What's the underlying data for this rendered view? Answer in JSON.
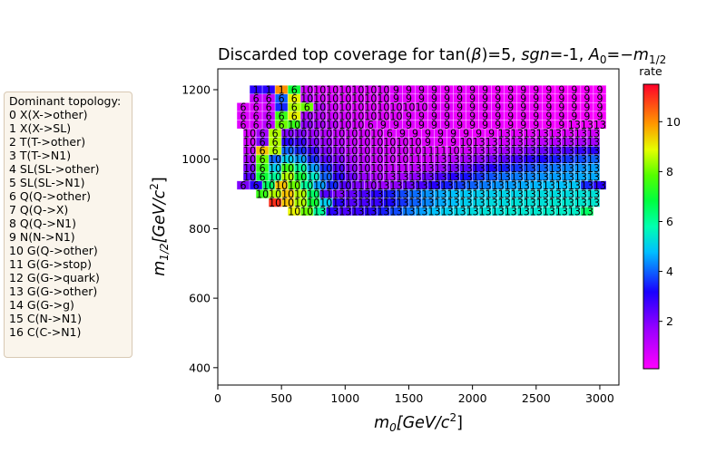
{
  "chart_data": {
    "type": "heatmap",
    "title": "Discarded top coverage for tan(β)=5, sgn=-1, A0=−m1/2",
    "title_parts": {
      "pre": "Discarded top coverage for tan(",
      "beta": "β",
      "mid1": ")=5, ",
      "sgn": "sgn",
      "mid2": "=-1, ",
      "A": "A",
      "A_sub": "0",
      "mid3": "=−",
      "m": "m",
      "m_sub": "1/2"
    },
    "xlabel": {
      "m": "m",
      "sub": "0",
      "unit": "[GeV/c",
      "sup": "2",
      "close": "]"
    },
    "ylabel": {
      "m": "m",
      "sub": "1/2",
      "unit": "[GeV/c",
      "sup": "2",
      "close": "]"
    },
    "xlim": [
      0,
      3150
    ],
    "ylim": [
      350,
      1260
    ],
    "x_ticks": [
      "0",
      "500",
      "1000",
      "1500",
      "2000",
      "2500",
      "3000"
    ],
    "y_ticks": [
      "400",
      "600",
      "800",
      "1000",
      "1200"
    ],
    "colorbar": {
      "label": "rate",
      "range": [
        0.1,
        11.5
      ],
      "ticks": [
        "2",
        "4",
        "6",
        "8",
        "10"
      ],
      "colormap": "gist_rainbow_r"
    },
    "grid": false,
    "cell_size": [
      100,
      25
    ],
    "x_values": [
      200,
      300,
      400,
      500,
      600,
      700,
      800,
      900,
      1000,
      1100,
      1200,
      1300,
      1400,
      1500,
      1600,
      1700,
      1800,
      1900,
      2000,
      2100,
      2200,
      2300,
      2400,
      2500,
      2600,
      2700,
      2800,
      2900,
      3000
    ],
    "rows": [
      {
        "y": 1200,
        "x_start": 300,
        "topology": [
          "1",
          "1",
          "1",
          "6",
          "10",
          "10",
          "10",
          "10",
          "10",
          "10",
          "10",
          "9",
          "9",
          "9",
          "9",
          "9",
          "9",
          "9",
          "9",
          "9",
          "9",
          "9",
          "9",
          "9",
          "9",
          "9",
          "9",
          "9"
        ],
        "rate": [
          3.0,
          3.0,
          10.0,
          7.0,
          0.9,
          0.7,
          0.6,
          0.6,
          0.6,
          0.6,
          0.6,
          0.6,
          0.5,
          0.5,
          0.5,
          0.4,
          0.4,
          0.4,
          0.4,
          0.3,
          0.3,
          0.3,
          0.3,
          0.2,
          0.2,
          0.2,
          0.2,
          0.2
        ]
      },
      {
        "y": 1175,
        "x_start": 300,
        "topology": [
          "6",
          "6",
          "6",
          "6",
          "10",
          "10",
          "10",
          "10",
          "10",
          "10",
          "10",
          "9",
          "9",
          "9",
          "9",
          "9",
          "9",
          "9",
          "9",
          "9",
          "9",
          "9",
          "9",
          "9",
          "9",
          "9",
          "9",
          "9"
        ],
        "rate": [
          1.0,
          1.0,
          4.0,
          9.0,
          1.2,
          0.8,
          0.7,
          0.6,
          0.6,
          0.6,
          0.6,
          0.6,
          0.5,
          0.5,
          0.5,
          0.4,
          0.4,
          0.4,
          0.4,
          0.3,
          0.3,
          0.3,
          0.3,
          0.2,
          0.2,
          0.2,
          0.2,
          0.2
        ]
      },
      {
        "y": 1150,
        "x_start": 200,
        "topology": [
          "6",
          "6",
          "6",
          "1",
          "6",
          "6",
          "10",
          "10",
          "10",
          "10",
          "10",
          "10",
          "10",
          "10",
          "10",
          "9",
          "9",
          "9",
          "9",
          "9",
          "9",
          "9",
          "9",
          "9",
          "9",
          "9",
          "9",
          "9",
          "9"
        ],
        "rate": [
          0.6,
          0.6,
          0.8,
          3.5,
          8.5,
          8.0,
          1.3,
          0.8,
          0.7,
          0.6,
          0.6,
          0.6,
          0.6,
          0.6,
          0.6,
          0.5,
          0.5,
          0.4,
          0.4,
          0.4,
          0.4,
          0.3,
          0.3,
          0.3,
          0.3,
          0.2,
          0.2,
          0.2,
          0.2
        ]
      },
      {
        "y": 1125,
        "x_start": 200,
        "topology": [
          "6",
          "6",
          "6",
          "6",
          "6",
          "10",
          "10",
          "10",
          "10",
          "10",
          "10",
          "10",
          "10",
          "9",
          "9",
          "9",
          "9",
          "9",
          "9",
          "9",
          "9",
          "9",
          "9",
          "9",
          "9",
          "9",
          "9",
          "9",
          "9"
        ],
        "rate": [
          0.6,
          0.6,
          1.0,
          7.5,
          9.0,
          1.5,
          1.2,
          0.9,
          0.8,
          0.7,
          0.7,
          0.6,
          0.6,
          0.6,
          0.5,
          0.5,
          0.5,
          0.4,
          0.4,
          0.4,
          0.4,
          0.3,
          0.3,
          0.3,
          0.3,
          0.3,
          0.2,
          0.2,
          0.2
        ]
      },
      {
        "y": 1100,
        "x_start": 200,
        "topology": [
          "6",
          "6",
          "6",
          "6",
          "10",
          "10",
          "10",
          "10",
          "10",
          "10",
          "6",
          "9",
          "9",
          "9",
          "9",
          "9",
          "9",
          "9",
          "9",
          "9",
          "9",
          "9",
          "9",
          "9",
          "9",
          "9",
          "13",
          "13",
          "13"
        ],
        "rate": [
          0.6,
          0.7,
          1.2,
          8.0,
          7.5,
          1.8,
          1.5,
          1.2,
          0.9,
          0.8,
          0.7,
          0.6,
          0.6,
          0.6,
          0.5,
          0.5,
          0.5,
          0.4,
          0.4,
          0.4,
          0.4,
          0.3,
          0.3,
          0.3,
          0.3,
          0.3,
          0.3,
          0.3,
          0.3
        ]
      },
      {
        "y": 1075,
        "x_start": 250,
        "topology": [
          "10",
          "6",
          "6",
          "10",
          "10",
          "10",
          "10",
          "10",
          "10",
          "10",
          "10",
          "6",
          "9",
          "9",
          "9",
          "9",
          "9",
          "9",
          "9",
          "9",
          "13",
          "13",
          "13",
          "13",
          "13",
          "13",
          "13",
          "13"
        ],
        "rate": [
          0.7,
          1.5,
          8.5,
          2.0,
          2.0,
          1.6,
          1.3,
          1.0,
          0.9,
          0.8,
          0.7,
          0.6,
          0.6,
          0.5,
          0.5,
          0.5,
          0.5,
          0.4,
          0.4,
          0.4,
          0.5,
          0.5,
          0.5,
          0.6,
          0.6,
          0.6,
          0.7,
          0.8
        ]
      },
      {
        "y": 1050,
        "x_start": 250,
        "topology": [
          "10",
          "6",
          "6",
          "10",
          "10",
          "10",
          "10",
          "10",
          "10",
          "10",
          "10",
          "10",
          "10",
          "10",
          "9",
          "9",
          "9",
          "10",
          "13",
          "13",
          "13",
          "13",
          "13",
          "13",
          "13",
          "13",
          "13",
          "13"
        ],
        "rate": [
          0.8,
          2.0,
          8.5,
          3.0,
          2.8,
          2.0,
          1.7,
          1.3,
          1.0,
          0.9,
          0.8,
          0.7,
          0.7,
          0.6,
          0.6,
          0.5,
          0.5,
          0.6,
          0.6,
          0.7,
          0.8,
          0.9,
          1.0,
          1.1,
          1.2,
          1.3,
          1.4,
          1.5
        ]
      },
      {
        "y": 1025,
        "x_start": 250,
        "topology": [
          "10",
          "6",
          "6",
          "10",
          "10",
          "10",
          "10",
          "10",
          "10",
          "10",
          "10",
          "10",
          "10",
          "10",
          "11",
          "11",
          "10",
          "13",
          "13",
          "13",
          "13",
          "13",
          "13",
          "13",
          "13",
          "13",
          "13",
          "13"
        ],
        "rate": [
          1.0,
          9.5,
          8.5,
          4.0,
          3.5,
          2.8,
          2.0,
          1.6,
          1.2,
          1.0,
          0.9,
          0.8,
          0.8,
          0.7,
          0.7,
          0.6,
          0.7,
          0.8,
          1.0,
          1.2,
          1.5,
          1.7,
          2.0,
          2.2,
          2.4,
          2.6,
          2.8,
          3.0
        ]
      },
      {
        "y": 1000,
        "x_start": 250,
        "topology": [
          "10",
          "6",
          "10",
          "10",
          "10",
          "10",
          "10",
          "10",
          "10",
          "10",
          "10",
          "10",
          "10",
          "11",
          "11",
          "13",
          "13",
          "13",
          "13",
          "13",
          "13",
          "13",
          "13",
          "13",
          "13",
          "13",
          "13",
          "13"
        ],
        "rate": [
          1.5,
          8.0,
          4.0,
          5.0,
          4.5,
          3.5,
          2.5,
          2.0,
          1.5,
          1.2,
          1.0,
          0.9,
          0.8,
          0.8,
          0.8,
          1.0,
          1.2,
          1.5,
          1.8,
          2.1,
          2.4,
          2.7,
          3.0,
          3.2,
          3.4,
          3.6,
          3.8,
          4.0
        ]
      },
      {
        "y": 975,
        "x_start": 250,
        "topology": [
          "10",
          "6",
          "10",
          "10",
          "10",
          "10",
          "10",
          "10",
          "10",
          "10",
          "10",
          "11",
          "11",
          "13",
          "13",
          "13",
          "13",
          "13",
          "13",
          "13",
          "13",
          "13",
          "13",
          "13",
          "13",
          "13",
          "13",
          "13"
        ],
        "rate": [
          2.0,
          7.5,
          5.0,
          7.5,
          6.0,
          4.5,
          3.5,
          2.5,
          1.8,
          1.4,
          1.1,
          1.0,
          1.0,
          1.1,
          1.3,
          1.6,
          2.0,
          2.4,
          2.8,
          3.1,
          3.4,
          3.6,
          3.8,
          4.0,
          4.2,
          4.3,
          4.4,
          4.5
        ]
      },
      {
        "y": 950,
        "x_start": 250,
        "topology": [
          "10",
          "6",
          "10",
          "10",
          "10",
          "10",
          "10",
          "10",
          "10",
          "11",
          "10",
          "13",
          "13",
          "13",
          "13",
          "13",
          "13",
          "13",
          "13",
          "13",
          "13",
          "13",
          "13",
          "13",
          "13",
          "13",
          "13",
          "13"
        ],
        "rate": [
          2.5,
          7.0,
          6.0,
          8.5,
          7.0,
          5.5,
          4.0,
          3.0,
          2.2,
          1.7,
          1.4,
          1.3,
          1.5,
          1.8,
          2.2,
          2.6,
          3.0,
          3.3,
          3.6,
          3.9,
          4.1,
          4.2,
          4.3,
          4.4,
          4.5,
          4.5,
          4.6,
          4.6
        ]
      },
      {
        "y": 925,
        "x_start": 200,
        "topology": [
          "6",
          "6",
          "10",
          "10",
          "10",
          "10",
          "10",
          "10",
          "10",
          "11",
          "10",
          "13",
          "13",
          "13",
          "13",
          "13",
          "13",
          "13",
          "13",
          "13",
          "13",
          "13",
          "13",
          "13",
          "13",
          "13",
          "13",
          "13",
          "13"
        ],
        "rate": [
          2.0,
          3.0,
          6.5,
          9.5,
          8.0,
          6.0,
          4.5,
          3.5,
          2.5,
          2.0,
          1.7,
          1.6,
          1.8,
          2.2,
          2.6,
          3.0,
          3.4,
          3.7,
          4.0,
          4.2,
          4.4,
          4.5,
          4.6,
          4.7,
          4.8,
          4.8,
          4.9,
          3.5,
          3.0
        ]
      },
      {
        "y": 900,
        "x_start": 350,
        "topology": [
          "10",
          "10",
          "10",
          "10",
          "10",
          "11",
          "13",
          "13",
          "13",
          "13",
          "13",
          "13",
          "13",
          "13",
          "13",
          "13",
          "13",
          "13",
          "13",
          "13",
          "13",
          "13",
          "13",
          "13",
          "13",
          "13",
          "13"
        ],
        "rate": [
          7.5,
          8.5,
          9.5,
          8.5,
          6.5,
          2.5,
          2.0,
          2.3,
          2.6,
          3.0,
          3.4,
          3.8,
          4.1,
          4.4,
          4.6,
          4.8,
          4.9,
          5.0,
          5.0,
          5.1,
          5.1,
          5.2,
          5.2,
          5.2,
          5.2,
          5.3,
          5.3
        ]
      },
      {
        "y": 875,
        "x_start": 450,
        "topology": [
          "10",
          "10",
          "10",
          "10",
          "10",
          "13",
          "13",
          "13",
          "13",
          "13",
          "13",
          "13",
          "13",
          "13",
          "13",
          "13",
          "13",
          "13",
          "13",
          "13",
          "13",
          "13",
          "13",
          "13",
          "13",
          "13"
        ],
        "rate": [
          11.0,
          9.5,
          8.5,
          7.0,
          5.0,
          3.0,
          2.5,
          2.6,
          2.8,
          3.2,
          3.6,
          4.0,
          4.3,
          4.6,
          4.8,
          5.0,
          5.1,
          5.2,
          5.2,
          5.3,
          5.3,
          5.3,
          5.4,
          5.4,
          5.4,
          5.4
        ]
      },
      {
        "y": 850,
        "x_start": 600,
        "topology": [
          "10",
          "10",
          "13",
          "13",
          "13",
          "13",
          "13",
          "13",
          "13",
          "13",
          "13",
          "13",
          "13",
          "13",
          "13",
          "13",
          "13",
          "13",
          "13",
          "13",
          "13",
          "13",
          "13",
          "13"
        ],
        "rate": [
          9.0,
          8.0,
          6.0,
          3.0,
          2.6,
          2.8,
          3.0,
          3.4,
          3.8,
          4.2,
          4.5,
          4.8,
          5.0,
          5.1,
          5.2,
          5.3,
          5.3,
          5.4,
          5.4,
          5.4,
          5.5,
          5.5,
          5.5,
          6.5
        ]
      }
    ]
  },
  "legend": {
    "title": "Dominant topology:",
    "items": [
      "0 X(X->other)",
      "1 X(X->SL)",
      "2 T(T->other)",
      "3 T(T->N1)",
      "4 SL(SL->other)",
      "5 SL(SL->N1)",
      "6 Q(Q->other)",
      "7 Q(Q->X)",
      "8 Q(Q->N1)",
      "9 N(N->N1)",
      "10 G(Q->other)",
      "11 G(G->stop)",
      "12 G(G->quark)",
      "13 G(G->other)",
      "14 G(G->g)",
      "15 C(N->N1)",
      "16 C(C->N1)"
    ]
  }
}
